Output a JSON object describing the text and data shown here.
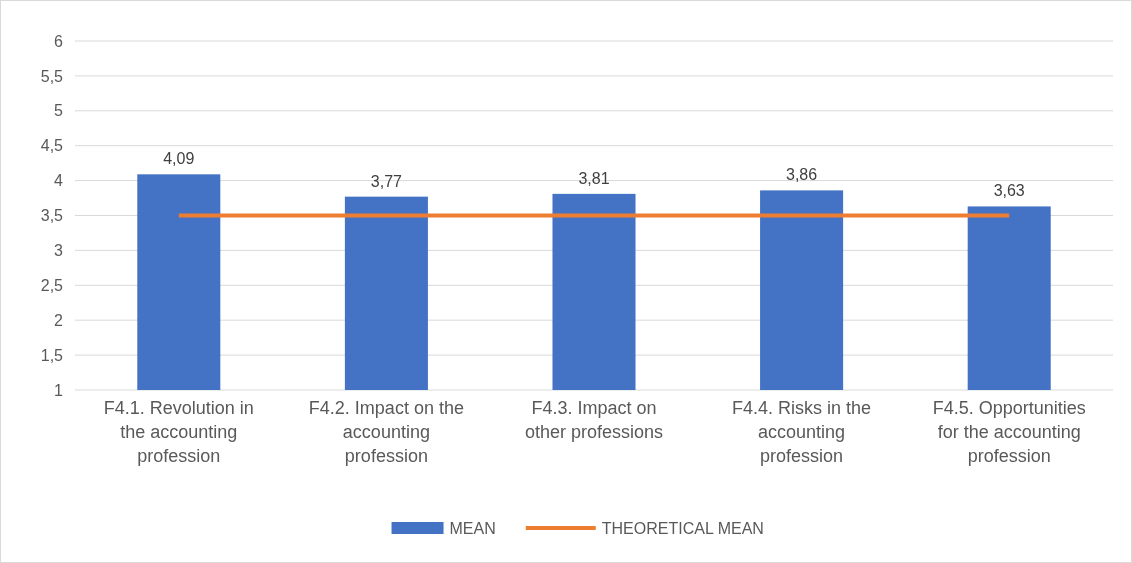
{
  "chart_data": {
    "type": "bar",
    "categories": [
      "F4.1. Revolution in the accounting profession",
      "F4.2. Impact on the accounting profession",
      "F4.3. Impact on other professions",
      "F4.4. Risks in the accounting profession",
      "F4.5. Opportunities for the accounting profession"
    ],
    "series": [
      {
        "name": "MEAN",
        "color": "#4472c4",
        "values": [
          4.09,
          3.77,
          3.81,
          3.86,
          3.63
        ],
        "value_labels": [
          "4,09",
          "3,77",
          "3,81",
          "3,86",
          "3,63"
        ]
      },
      {
        "name": "THEORETICAL MEAN",
        "type": "line",
        "color": "#ed7d31",
        "values": [
          3.5,
          3.5,
          3.5,
          3.5,
          3.5
        ]
      }
    ],
    "ylim": [
      1,
      6
    ],
    "yticks": [
      1,
      {
        "value": 1.5,
        "label": "1,5"
      },
      2,
      {
        "value": 2.5,
        "label": "2,5"
      },
      3,
      {
        "value": 3.5,
        "label": "3,5"
      },
      4,
      {
        "value": 4.5,
        "label": "4,5"
      },
      5,
      {
        "value": 5.5,
        "label": "5,5"
      },
      6
    ],
    "grid": "y",
    "legend": "bottom",
    "marker": "none",
    "line_style": "solid"
  }
}
